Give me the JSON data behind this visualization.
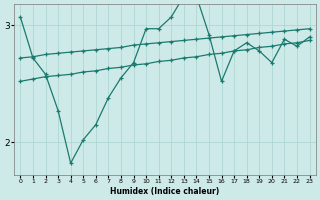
{
  "xlabel": "Humidex (Indice chaleur)",
  "bg_color": "#ceeae8",
  "line_color": "#1a7a6e",
  "grid_color": "#aad4d0",
  "xlim": [
    -0.5,
    23.5
  ],
  "ylim": [
    1.72,
    3.18
  ],
  "yticks": [
    2,
    3
  ],
  "xticks": [
    0,
    1,
    2,
    3,
    4,
    5,
    6,
    7,
    8,
    9,
    10,
    11,
    12,
    13,
    14,
    15,
    16,
    17,
    18,
    19,
    20,
    21,
    22,
    23
  ],
  "x_l1": [
    0,
    1,
    2,
    3,
    4,
    5,
    6,
    7,
    8,
    9,
    10,
    11,
    12,
    13,
    14,
    15,
    16,
    17,
    18,
    19,
    20,
    21,
    22,
    23
  ],
  "y_l1": [
    2.72,
    2.73,
    2.75,
    2.76,
    2.77,
    2.78,
    2.79,
    2.8,
    2.81,
    2.83,
    2.84,
    2.85,
    2.86,
    2.87,
    2.88,
    2.89,
    2.9,
    2.91,
    2.92,
    2.93,
    2.94,
    2.95,
    2.96,
    2.97
  ],
  "x_l2": [
    0,
    1,
    2,
    3,
    4,
    5,
    6,
    7,
    8,
    9,
    10,
    11,
    12,
    13,
    14,
    15,
    16,
    17,
    18,
    19,
    20,
    21,
    22,
    23
  ],
  "y_l2": [
    2.52,
    2.54,
    2.56,
    2.57,
    2.58,
    2.6,
    2.61,
    2.63,
    2.64,
    2.66,
    2.67,
    2.69,
    2.7,
    2.72,
    2.73,
    2.75,
    2.76,
    2.78,
    2.79,
    2.81,
    2.82,
    2.84,
    2.85,
    2.87
  ],
  "x_l3": [
    0,
    1,
    2,
    3,
    4,
    5,
    6,
    7,
    8,
    9,
    10,
    11,
    12,
    13,
    14,
    15,
    16,
    17,
    18,
    19,
    20,
    21,
    22,
    23
  ],
  "y_l3": [
    3.07,
    2.72,
    2.58,
    2.27,
    1.82,
    2.02,
    2.15,
    2.38,
    2.55,
    2.68,
    2.97,
    2.97,
    3.07,
    3.25,
    3.25,
    2.92,
    2.52,
    2.78,
    2.85,
    2.78,
    2.68,
    2.88,
    2.82,
    2.9
  ]
}
